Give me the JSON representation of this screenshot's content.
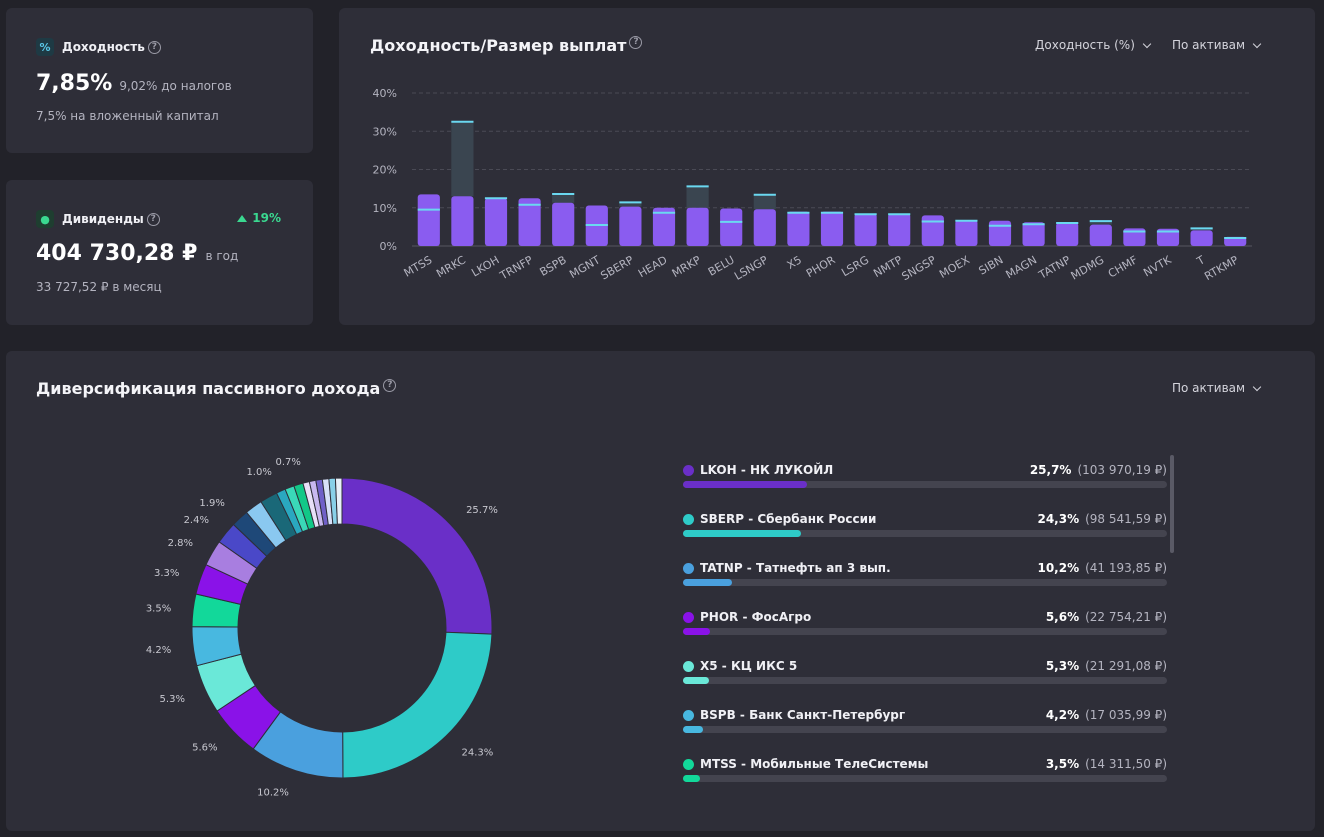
{
  "yield_card": {
    "title": "Доходность",
    "value": "7,85%",
    "pre_tax": "9,02% до налогов",
    "invested": "7,5% на вложенный капитал"
  },
  "dividends_card": {
    "title": "Дивиденды",
    "change": "19%",
    "value": "404 730,28 ₽",
    "per_year": "в год",
    "per_month": "33 727,52 ₽ в месяц"
  },
  "yield_chart": {
    "title": "Доходность/Размер выплат",
    "metric_dropdown": "Доходность (%)",
    "group_dropdown": "По активам"
  },
  "chart_data": [
    {
      "type": "bar",
      "title": "Доходность/Размер выплат",
      "categories": [
        "MTSS",
        "MRKC",
        "LKOH",
        "TRNFP",
        "BSPB",
        "MGNT",
        "SBERP",
        "HEAD",
        "MRKP",
        "BELU",
        "LSNGP",
        "X5",
        "PHOR",
        "LSRG",
        "NMTP",
        "SNGSP",
        "MOEX",
        "SIBN",
        "MAGN",
        "TATNP",
        "MDMG",
        "CHMF",
        "NVTK",
        "T",
        "RTKMP"
      ],
      "series": [
        {
          "values": [
            13.5,
            13,
            12.5,
            12.5,
            11.3,
            10.6,
            10.3,
            10,
            10,
            9.8,
            9.6,
            9,
            9,
            8.5,
            8.5,
            8,
            6.8,
            6.6,
            6.2,
            6.1,
            5.6,
            4.6,
            4.5,
            4.1,
            2.4
          ]
        }
      ],
      "markers": [
        9.5,
        32.5,
        12.5,
        10.8,
        13.6,
        5.5,
        11.4,
        8.7,
        15.6,
        6.3,
        13.4,
        8.7,
        8.7,
        8.3,
        8.3,
        6.4,
        6.6,
        5.3,
        5.7,
        6,
        6.5,
        3.8,
        3.8,
        4.6,
        2.1
      ],
      "yticks": [
        "0%",
        "10%",
        "20%",
        "30%",
        "40%"
      ],
      "ylim": [
        0,
        40
      ],
      "grid": true
    },
    {
      "type": "pie",
      "title": "Диверсификация пассивного дохода",
      "values": [
        25.7,
        24.3,
        10.2,
        5.6,
        5.3,
        4.2,
        3.5,
        3.3,
        2.8,
        2.4,
        1.9,
        1.9,
        1.9,
        1.0,
        1.0,
        1.0,
        0.7,
        0.7,
        0.7,
        0.7,
        0.7,
        0.7
      ],
      "labels": [
        "25.7%",
        "24.3%",
        "10.2%",
        "5.6%",
        "5.3%",
        "4.2%",
        "3.5%",
        "3.3%",
        "2.8%",
        "2.4%",
        "1.9%",
        "",
        "",
        "1.0%",
        "",
        "",
        "0.7%",
        "",
        "",
        "",
        "",
        ""
      ],
      "colors": [
        "#6a2fc8",
        "#2ecbc8",
        "#4aa0de",
        "#8a12e8",
        "#6ae8d8",
        "#48b8e0",
        "#12d89a",
        "#8a12e8",
        "#a87ee0",
        "#4a48c8",
        "#1e4878",
        "#8ac8f0",
        "#1a6878",
        "#2aa8c0",
        "#3ad8b8",
        "#12c888",
        "#e8e0f8",
        "#c8b8f0",
        "#7060c8",
        "#d8e0f8",
        "#88d0e8",
        "#e8f0f8"
      ]
    }
  ],
  "diversification": {
    "title": "Диверсификация пассивного дохода",
    "group_dropdown": "По активам",
    "items": [
      {
        "name": "LKOH - НК ЛУКОЙЛ",
        "pct": "25,7%",
        "amount": "(103 970,19 ₽)",
        "share": 25.7,
        "color": "#6a2fc8"
      },
      {
        "name": "SBERP - Сбербанк России",
        "pct": "24,3%",
        "amount": "(98 541,59 ₽)",
        "share": 24.3,
        "color": "#2ecbc8"
      },
      {
        "name": "TATNP - Татнефть ап 3 вып.",
        "pct": "10,2%",
        "amount": "(41 193,85 ₽)",
        "share": 10.2,
        "color": "#4aa0de"
      },
      {
        "name": "PHOR - ФосАгро",
        "pct": "5,6%",
        "amount": "(22 754,21 ₽)",
        "share": 5.6,
        "color": "#8a12e8"
      },
      {
        "name": "X5 - КЦ ИКС 5",
        "pct": "5,3%",
        "amount": "(21 291,08 ₽)",
        "share": 5.3,
        "color": "#6ae8d8"
      },
      {
        "name": "BSPB - Банк Санкт-Петербург",
        "pct": "4,2%",
        "amount": "(17 035,99 ₽)",
        "share": 4.2,
        "color": "#48b8e0"
      },
      {
        "name": "MTSS - Мобильные ТелеСистемы",
        "pct": "3,5%",
        "amount": "(14 311,50 ₽)",
        "share": 3.5,
        "color": "#12d89a"
      }
    ]
  }
}
